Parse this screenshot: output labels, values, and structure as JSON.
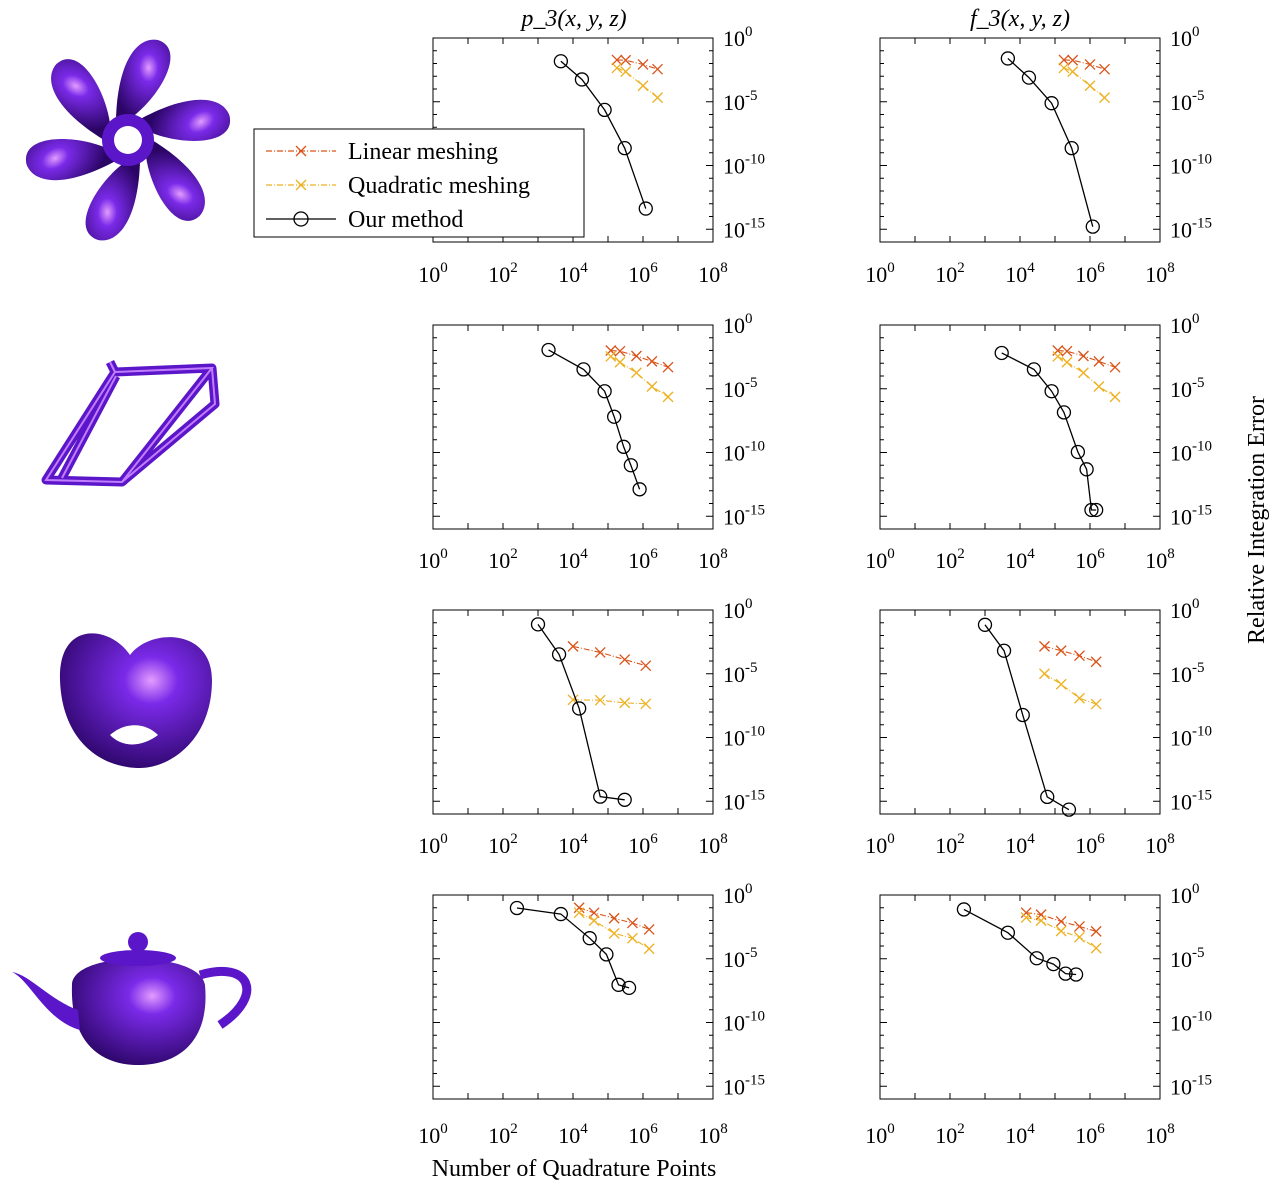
{
  "figure": {
    "column_titles": [
      "p_3(x, y, z)",
      "f_3(x, y, z)"
    ],
    "xlabel": "Number of Quadrature Points",
    "ylabel": "Relative Integration Error",
    "x_tick_labels": [
      "10^0",
      "10^2",
      "10^4",
      "10^6",
      "10^8"
    ],
    "y_tick_labels": [
      "10^0",
      "10^-5",
      "10^-10",
      "10^-15"
    ],
    "shapes": [
      "propeller-shape",
      "bike-frame-shape",
      "cut-sphere-shape",
      "teapot-shape"
    ],
    "shape_color": "#5a16c8",
    "legend": {
      "position": "left, overlapping the top-left panel",
      "items": [
        {
          "label": "Linear meshing",
          "color": "#d95319",
          "marker": "x",
          "line": "dash-dot"
        },
        {
          "label": "Quadratic meshing",
          "color": "#edb120",
          "marker": "x",
          "line": "dash-dot"
        },
        {
          "label": "Our method",
          "color": "#000000",
          "marker": "o",
          "line": "solid"
        }
      ]
    }
  },
  "chart_data": [
    {
      "type": "line",
      "title": "p_3(x, y, z)",
      "row": 1,
      "col": 1,
      "xscale": "log",
      "yscale": "log",
      "xlim": [
        1,
        100000000
      ],
      "ylim": [
        1e-16,
        1
      ],
      "xlabel": "",
      "ylabel": "",
      "series": [
        {
          "name": "Linear meshing",
          "x": [
            180000.0,
            320000.0,
            1000000.0,
            2600000.0
          ],
          "y": [
            0.019,
            0.018,
            0.0084,
            0.0036
          ]
        },
        {
          "name": "Quadratic meshing",
          "x": [
            180000.0,
            320000.0,
            1000000.0,
            2600000.0
          ],
          "y": [
            0.0045,
            0.0023,
            0.00018,
            2.1e-05
          ]
        },
        {
          "name": "Our method",
          "x": [
            4500,
            18000,
            80000,
            300000,
            1200000
          ],
          "y": [
            0.015,
            0.00056,
            2.3e-06,
            2.3e-09,
            4.2e-14
          ]
        }
      ]
    },
    {
      "type": "line",
      "title": "f_3(x, y, z)",
      "row": 1,
      "col": 2,
      "xscale": "log",
      "yscale": "log",
      "xlim": [
        1,
        100000000
      ],
      "ylim": [
        1e-16,
        1
      ],
      "xlabel": "",
      "ylabel": "",
      "series": [
        {
          "name": "Linear meshing",
          "x": [
            180000.0,
            320000.0,
            1000000.0,
            2600000.0
          ],
          "y": [
            0.019,
            0.018,
            0.0084,
            0.0036
          ]
        },
        {
          "name": "Quadratic meshing",
          "x": [
            180000.0,
            320000.0,
            1000000.0,
            2600000.0
          ],
          "y": [
            0.0045,
            0.0023,
            0.00018,
            2.1e-05
          ]
        },
        {
          "name": "Our method",
          "x": [
            4500,
            18000,
            80000,
            300000,
            1200000
          ],
          "y": [
            0.025,
            0.00078,
            7.7e-06,
            2.3e-09,
            1.6e-15
          ]
        }
      ]
    },
    {
      "type": "line",
      "row": 2,
      "col": 1,
      "xscale": "log",
      "yscale": "log",
      "xlim": [
        1,
        100000000
      ],
      "ylim": [
        1e-16,
        1
      ],
      "xlabel": "",
      "ylabel": "",
      "series": [
        {
          "name": "Linear meshing",
          "x": [
            120000.0,
            220000.0,
            650000.0,
            1800000.0,
            5200000.0
          ],
          "y": [
            0.01,
            0.0088,
            0.0037,
            0.0014,
            0.00049
          ]
        },
        {
          "name": "Quadratic meshing",
          "x": [
            120000.0,
            220000.0,
            650000.0,
            1800000.0,
            5200000.0
          ],
          "y": [
            0.0034,
            0.0012,
            0.00018,
            1.5e-05,
            2.3e-06
          ]
        },
        {
          "name": "Our method",
          "x": [
            2000,
            20000,
            80000,
            150000,
            280000,
            450000,
            800000
          ],
          "y": [
            0.011,
            0.00033,
            6.4e-06,
            6.4e-08,
            2.8e-10,
            1e-11,
            1.3e-13
          ]
        }
      ]
    },
    {
      "type": "line",
      "row": 2,
      "col": 2,
      "xscale": "log",
      "yscale": "log",
      "xlim": [
        1,
        100000000
      ],
      "ylim": [
        1e-16,
        1
      ],
      "xlabel": "",
      "ylabel": "",
      "series": [
        {
          "name": "Linear meshing",
          "x": [
            120000.0,
            220000.0,
            650000.0,
            1800000.0,
            5200000.0
          ],
          "y": [
            0.01,
            0.0088,
            0.0037,
            0.0014,
            0.00049
          ]
        },
        {
          "name": "Quadratic meshing",
          "x": [
            120000.0,
            220000.0,
            650000.0,
            1800000.0,
            5200000.0
          ],
          "y": [
            0.0034,
            0.0012,
            0.00018,
            1.5e-05,
            2.3e-06
          ]
        },
        {
          "name": "Our method",
          "x": [
            3000,
            25000,
            80000,
            180000,
            450000,
            800000,
            1100000,
            1500000
          ],
          "y": [
            0.0064,
            0.00033,
            6.4e-06,
            1.4e-07,
            1.1e-10,
            4.8e-12,
            3.1e-15,
            3.1e-15
          ]
        }
      ]
    },
    {
      "type": "line",
      "row": 3,
      "col": 1,
      "xscale": "log",
      "yscale": "log",
      "xlim": [
        1,
        100000000
      ],
      "ylim": [
        1e-16,
        1
      ],
      "xlabel": "",
      "ylabel": "",
      "series": [
        {
          "name": "Linear meshing",
          "x": [
            10000,
            60000,
            300000,
            1200000
          ],
          "y": [
            0.0014,
            0.00047,
            0.00013,
            4.3e-05
          ]
        },
        {
          "name": "Quadratic meshing",
          "x": [
            10000,
            60000,
            300000,
            1200000
          ],
          "y": [
            9e-08,
            8.5e-08,
            5.2e-08,
            4.4e-08
          ]
        },
        {
          "name": "Our method",
          "x": [
            1000,
            4000,
            15000,
            60000,
            300000
          ],
          "y": [
            0.075,
            0.00033,
            1.9e-08,
            2.3e-15,
            1.3e-15
          ]
        }
      ]
    },
    {
      "type": "line",
      "row": 3,
      "col": 2,
      "xscale": "log",
      "yscale": "log",
      "xlim": [
        1,
        100000000
      ],
      "ylim": [
        1e-16,
        1
      ],
      "xlabel": "",
      "ylabel": "",
      "series": [
        {
          "name": "Linear meshing",
          "x": [
            50000,
            150000,
            500000,
            1500000
          ],
          "y": [
            0.0014,
            0.00065,
            0.00026,
            8.7e-05
          ]
        },
        {
          "name": "Quadratic meshing",
          "x": [
            50000,
            150000,
            500000,
            1500000
          ],
          "y": [
            1e-05,
            1.5e-06,
            1.2e-07,
            4.2e-08
          ]
        },
        {
          "name": "Our method",
          "x": [
            1000,
            3500,
            12000,
            60000,
            250000
          ],
          "y": [
            0.069,
            0.00064,
            5.8e-09,
            2.2e-15,
            2.2e-16
          ]
        }
      ]
    },
    {
      "type": "line",
      "row": 4,
      "col": 1,
      "xscale": "log",
      "yscale": "log",
      "xlim": [
        1,
        100000000
      ],
      "ylim": [
        1e-16,
        1
      ],
      "xlabel": "",
      "ylabel": "",
      "series": [
        {
          "name": "Linear meshing",
          "x": [
            15000,
            40000,
            150000,
            500000,
            1500000
          ],
          "y": [
            0.1,
            0.04,
            0.015,
            0.0064,
            0.002
          ]
        },
        {
          "name": "Quadratic meshing",
          "x": [
            15000,
            40000,
            150000,
            500000,
            1500000
          ],
          "y": [
            0.041,
            0.0098,
            0.00098,
            0.00041,
            6.1e-05
          ]
        },
        {
          "name": "Our method",
          "x": [
            250,
            4500,
            30000,
            90000,
            200000,
            400000
          ],
          "y": [
            0.095,
            0.032,
            0.00041,
            2.2e-05,
            9e-08,
            5.2e-08
          ]
        }
      ]
    },
    {
      "type": "line",
      "row": 4,
      "col": 2,
      "xscale": "log",
      "yscale": "log",
      "xlim": [
        1,
        100000000
      ],
      "ylim": [
        1e-16,
        1
      ],
      "xlabel": "",
      "ylabel": "",
      "series": [
        {
          "name": "Linear meshing",
          "x": [
            15000,
            40000,
            150000,
            500000,
            1500000
          ],
          "y": [
            0.041,
            0.029,
            0.0084,
            0.0034,
            0.0014
          ]
        },
        {
          "name": "Quadratic meshing",
          "x": [
            15000,
            40000,
            150000,
            500000,
            1500000
          ],
          "y": [
            0.017,
            0.0098,
            0.0015,
            0.00049,
            6.8e-05
          ]
        },
        {
          "name": "Our method",
          "x": [
            250,
            4500,
            30000,
            90000,
            200000,
            400000
          ],
          "y": [
            0.074,
            0.0011,
            1.1e-05,
            3.8e-06,
            6.8e-07,
            5.8e-07
          ]
        }
      ]
    }
  ]
}
